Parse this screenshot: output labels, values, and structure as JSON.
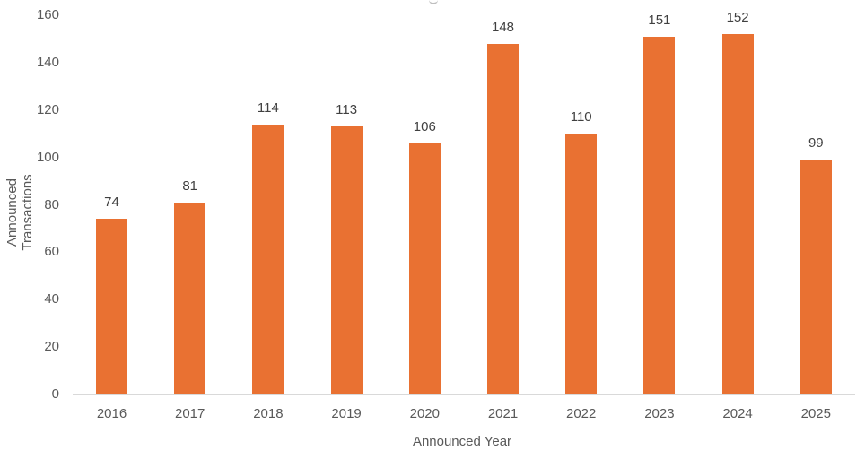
{
  "chart_data": {
    "type": "bar",
    "title": "",
    "xlabel": "Announced Year",
    "ylabel": "Announced Transactions",
    "categories": [
      "2016",
      "2017",
      "2018",
      "2019",
      "2020",
      "2021",
      "2022",
      "2023",
      "2024",
      "2025"
    ],
    "values": [
      74,
      81,
      114,
      113,
      106,
      148,
      110,
      151,
      152,
      99
    ],
    "ylim": [
      0,
      160
    ],
    "yticks": [
      0,
      20,
      40,
      60,
      80,
      100,
      120,
      140,
      160
    ],
    "grid": false,
    "legend": null,
    "bar_color": "#E97132",
    "data_labels": true
  }
}
